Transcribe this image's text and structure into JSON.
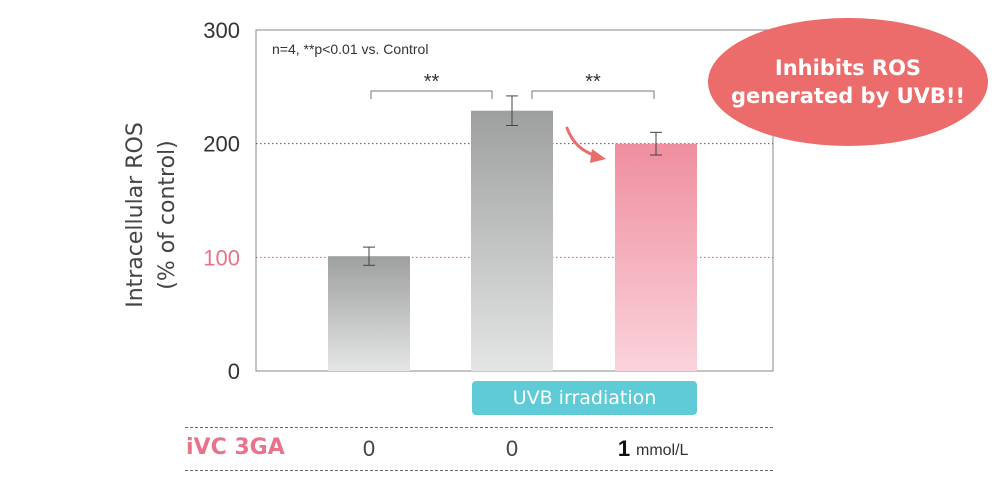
{
  "chart_data": {
    "type": "bar",
    "categories": [
      "",
      "",
      ""
    ],
    "values": [
      101,
      229,
      200
    ],
    "errors": [
      8,
      13,
      10
    ],
    "bar_colors": [
      [
        "#9ea09f",
        "#e4e5e5"
      ],
      [
        "#9ea09f",
        "#e4e5e5"
      ],
      [
        "#ef8e9f",
        "#fbd3dc"
      ]
    ],
    "ylim": [
      0,
      300
    ],
    "yticks": [
      "0",
      "100",
      "200",
      "300"
    ],
    "ytick_highlight": "100",
    "ylabel_line1": "Intracellular ROS",
    "ylabel_line2": "(% of control)",
    "annotation": "n=4, **p<0.01 vs. Control",
    "significance": [
      {
        "from": 0,
        "to": 1,
        "label": "**"
      },
      {
        "from": 1,
        "to": 2,
        "label": "**"
      }
    ],
    "reference_lines": [
      {
        "y": 200,
        "color": "#555555"
      },
      {
        "y": 100,
        "color": "#d94f8a"
      }
    ],
    "grid": false,
    "legend": "none"
  },
  "callout": {
    "line1": "Inhibits ROS",
    "line2": "generated by UVB!!",
    "color": "#ec6c6c"
  },
  "uvb_label": "UVB irradiation",
  "conditions": {
    "label": "iVC 3GA",
    "values": [
      "0",
      "0",
      "1"
    ],
    "unit": "mmol/L"
  },
  "colors": {
    "accent_pink": "#e8738a",
    "uvb_teal": "#5ecbd7",
    "arrow": "#ec6c6c"
  }
}
